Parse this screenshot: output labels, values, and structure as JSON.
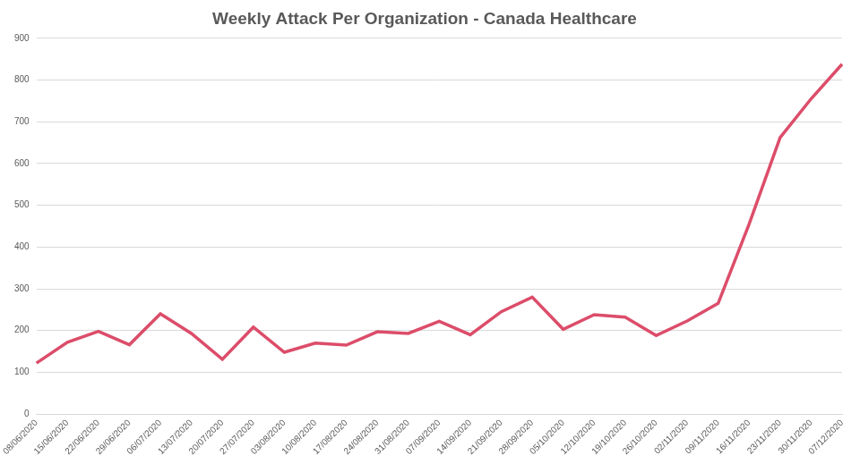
{
  "chart_data": {
    "type": "line",
    "title": "Weekly Attack Per Organization - Canada Healthcare",
    "categories": [
      "08/06/2020",
      "15/06/2020",
      "22/06/2020",
      "29/06/2020",
      "06/07/2020",
      "13/07/2020",
      "20/07/2020",
      "27/07/2020",
      "03/08/2020",
      "10/08/2020",
      "17/08/2020",
      "24/08/2020",
      "31/08/2020",
      "07/09/2020",
      "14/09/2020",
      "21/09/2020",
      "28/09/2020",
      "05/10/2020",
      "12/10/2020",
      "19/10/2020",
      "26/10/2020",
      "02/11/2020",
      "09/11/2020",
      "16/11/2020",
      "23/11/2020",
      "30/11/2020",
      "07/12/2020"
    ],
    "values": [
      122,
      172,
      198,
      166,
      240,
      193,
      131,
      208,
      148,
      170,
      165,
      197,
      193,
      222,
      190,
      245,
      280,
      203,
      238,
      232,
      188,
      223,
      265,
      455,
      662,
      755,
      838
    ],
    "color": "#dc4d6a",
    "ylim": [
      0,
      900
    ],
    "yticks": [
      0,
      100,
      200,
      300,
      400,
      500,
      600,
      700,
      800,
      900
    ],
    "grid": true
  }
}
